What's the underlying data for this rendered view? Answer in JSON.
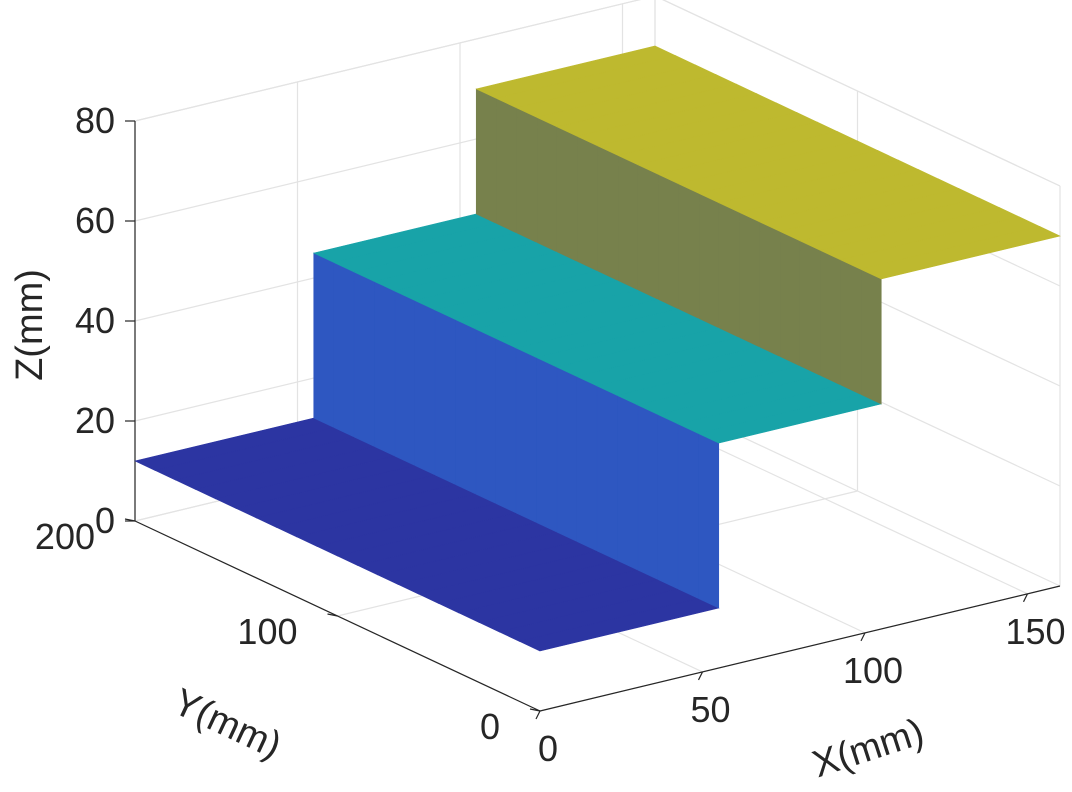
{
  "chart_data": {
    "type": "surface",
    "title": "",
    "xlabel": "X(mm)",
    "ylabel": "Y(mm)",
    "zlabel": "Z(mm)",
    "xlim": [
      0,
      160
    ],
    "ylim": [
      0,
      200
    ],
    "zlim": [
      0,
      80
    ],
    "xticks": [
      0,
      50,
      100,
      150
    ],
    "yticks": [
      0,
      100,
      200
    ],
    "zticks": [
      0,
      20,
      40,
      60,
      80
    ],
    "grid": true,
    "colormap": "parula",
    "colors": {
      "low": "#2a1d8a",
      "mid": "#18a3a8",
      "high": "#d8d82a"
    },
    "surface": {
      "description_levels": [
        {
          "x_range": [
            0,
            55
          ],
          "z": 12
        },
        {
          "x_range": [
            55,
            105
          ],
          "z": 45
        },
        {
          "x_range": [
            105,
            160
          ],
          "z": 70
        }
      ],
      "y_range": [
        0,
        200
      ]
    }
  }
}
